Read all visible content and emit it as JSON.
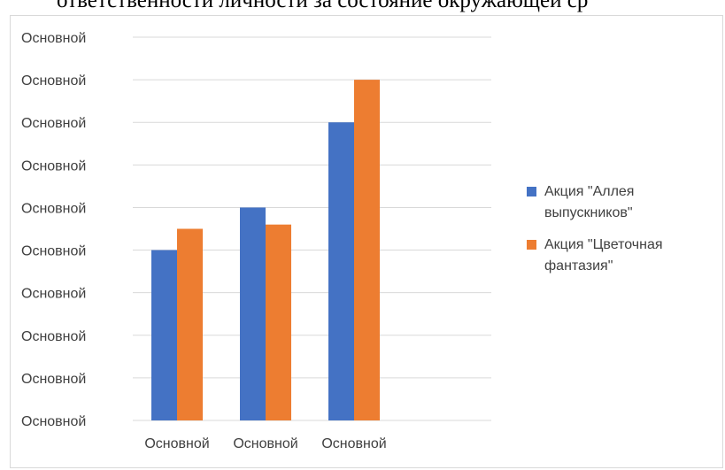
{
  "page": {
    "top_text": "ответственности личности за состояние окружающей ср"
  },
  "chart_data": {
    "type": "bar",
    "title": "",
    "xlabel": "",
    "ylabel": "",
    "categories": [
      "Основной",
      "Основной",
      "Основной"
    ],
    "y_tick_labels": [
      "Основной",
      "Основной",
      "Основной",
      "Основной",
      "Основной",
      "Основной",
      "Основной",
      "Основной",
      "Основной",
      "Основной"
    ],
    "ylim": [
      0,
      9
    ],
    "grid": true,
    "legend_position": "right",
    "series": [
      {
        "name": "Акция \"Аллея выпускников\"",
        "color": "#4472c4",
        "values": [
          4.0,
          5.0,
          7.0
        ]
      },
      {
        "name": "Акция \"Цветочная фантазия\"",
        "color": "#ed7d31",
        "values": [
          4.5,
          4.6,
          8.0
        ]
      }
    ]
  }
}
